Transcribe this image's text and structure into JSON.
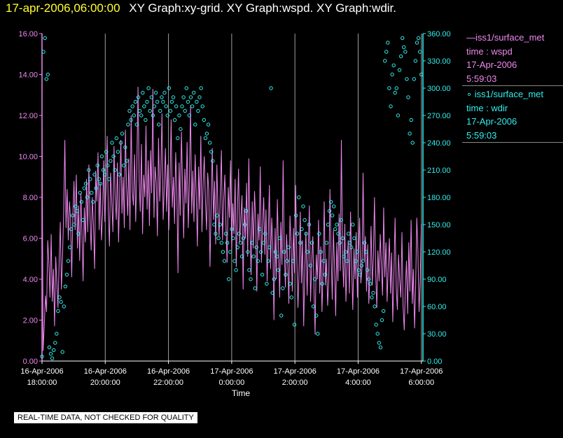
{
  "title": {
    "date": "17-apr-2006,06:00:00",
    "graphs": "XY Graph:xy-grid.  XY Graph:wspd.  XY Graph:wdir."
  },
  "legend": {
    "wspd": {
      "line1": "—iss1/surface_met",
      "line2": "time : wspd",
      "line3": "17-Apr-2006",
      "line4": "5:59:03"
    },
    "wdir": {
      "line1": "∘ iss1/surface_met",
      "line2": "time : wdir",
      "line3": "17-Apr-2006",
      "line4": "5:59:03"
    }
  },
  "disclaimer": "REAL-TIME DATA, NOT CHECKED FOR QUALITY",
  "colors": {
    "wspd": "#ee88ee",
    "wdir": "#33eeee",
    "grid": "#a0a0a0",
    "axis_left": "#ee88ee",
    "axis_right": "#33eeee",
    "ticklabel": "#ffffff",
    "background": "#000000"
  },
  "chart_data": {
    "type": "line",
    "title": "XY Graph:xy-grid.  XY Graph:wspd.  XY Graph:wdir.",
    "xlabel": "Time",
    "ylabel": "",
    "grid": "vertical",
    "legend_position": "right",
    "x_range_hours": [
      18.0,
      30.05
    ],
    "x_ticks": [
      {
        "hour": 18,
        "date": "16-Apr-2006",
        "time": "18:00:00"
      },
      {
        "hour": 20,
        "date": "16-Apr-2006",
        "time": "20:00:00"
      },
      {
        "hour": 22,
        "date": "16-Apr-2006",
        "time": "22:00:00"
      },
      {
        "hour": 24,
        "date": "17-Apr-2006",
        "time": "0:00:00"
      },
      {
        "hour": 26,
        "date": "17-Apr-2006",
        "time": "2:00:00"
      },
      {
        "hour": 28,
        "date": "17-Apr-2006",
        "time": "4:00:00"
      },
      {
        "hour": 30,
        "date": "17-Apr-2006",
        "time": "6:00:00"
      }
    ],
    "y_left": {
      "name": "wspd",
      "range": [
        0,
        16
      ],
      "ticks": [
        "0.00",
        "2.00",
        "4.00",
        "6.00",
        "8.00",
        "10.00",
        "12.00",
        "14.00",
        "16.00"
      ]
    },
    "y_right": {
      "name": "wdir",
      "range": [
        0,
        360
      ],
      "ticks": [
        "0.00",
        "30.00",
        "60.00",
        "90.00",
        "120.00",
        "150.00",
        "180.00",
        "210.00",
        "240.00",
        "270.00",
        "300.00",
        "330.00",
        "360.00"
      ]
    },
    "series": [
      {
        "name": "wspd",
        "style": "line",
        "x_start_hour": 18.0,
        "x_end_hour": 30.0,
        "values": [
          12.0,
          0.5,
          1.8,
          3.2,
          2.4,
          5.9,
          4.8,
          3.1,
          6.2,
          2.9,
          4.5,
          1.7,
          5.1,
          3.8,
          2.6,
          4.9,
          6.8,
          3.5,
          5.2,
          7.4,
          10.8,
          6.5,
          8.4,
          5.9,
          7.8,
          6.9,
          4.1,
          7.2,
          8.8,
          6.4,
          9.1,
          5.5,
          7.6,
          4.9,
          8.2,
          6.1,
          3.9,
          7.5,
          5.8,
          8.9,
          6.3,
          9.6,
          7.1,
          5.4,
          8.0,
          6.7,
          4.5,
          9.3,
          7.8,
          10.2,
          6.4,
          8.7,
          5.9,
          7.2,
          9.8,
          6.8,
          8.5,
          11.0,
          7.4,
          5.6,
          9.2,
          7.9,
          6.3,
          10.5,
          8.1,
          6.9,
          9.7,
          5.8,
          8.4,
          10.8,
          7.2,
          9.0,
          6.5,
          11.3,
          8.6,
          7.1,
          9.9,
          6.4,
          12.0,
          8.3,
          7.6,
          10.1,
          6.8,
          9.4,
          13.4,
          8.9,
          7.3,
          10.6,
          6.2,
          9.1,
          8.0,
          11.5,
          7.4,
          9.8,
          6.6,
          10.3,
          8.2,
          13.3,
          7.0,
          9.5,
          8.7,
          6.1,
          10.9,
          7.8,
          9.2,
          12.1,
          6.9,
          8.5,
          10.4,
          7.3,
          9.6,
          6.4,
          8.8,
          11.8,
          7.5,
          9.0,
          6.7,
          10.2,
          8.4,
          4.3,
          9.7,
          7.1,
          11.2,
          8.6,
          6.0,
          9.4,
          7.7,
          10.7,
          6.5,
          8.9,
          12.5,
          7.2,
          9.3,
          6.8,
          10.1,
          8.0,
          5.6,
          9.5,
          7.4,
          11.0,
          6.3,
          8.7,
          10.0,
          7.9,
          6.4,
          9.2,
          8.3,
          4.6,
          7.6,
          10.4,
          6.9,
          8.8,
          5.7,
          9.6,
          7.3,
          6.1,
          8.2,
          10.3,
          5.9,
          7.8,
          9.1,
          6.6,
          4.8,
          8.5,
          7.0,
          9.8,
          5.4,
          7.7,
          6.2,
          8.9,
          4.6,
          7.3,
          9.4,
          5.8,
          6.9,
          8.1,
          3.5,
          7.5,
          6.0,
          8.7,
          5.1,
          9.9,
          6.4,
          4.2,
          7.8,
          5.5,
          8.3,
          6.8,
          3.4,
          7.2,
          5.9,
          9.5,
          4.8,
          6.6,
          8.0,
          5.2,
          7.4,
          3.9,
          6.1,
          8.6,
          4.5,
          7.0,
          5.7,
          2.0,
          6.5,
          4.0,
          7.9,
          5.3,
          3.1,
          6.8,
          4.7,
          9.8,
          5.5,
          3.6,
          6.2,
          4.9,
          2.8,
          7.1,
          5.8,
          3.4,
          6.5,
          4.3,
          8.6,
          5.0,
          2.6,
          4.4,
          7.3,
          3.8,
          5.9,
          1.7,
          4.6,
          6.3,
          3.2,
          5.4,
          7.6,
          2.9,
          4.8,
          6.1,
          3.5,
          1.3,
          5.2,
          4.0,
          6.9,
          3.3,
          5.6,
          2.4,
          4.5,
          7.8,
          3.7,
          5.0,
          2.7,
          4.1,
          8.4,
          5.3,
          3.0,
          6.4,
          4.7,
          2.2,
          5.8,
          3.9,
          7.2,
          4.4,
          10.8,
          5.1,
          3.6,
          6.7,
          2.9,
          4.8,
          5.9,
          3.3,
          7.3,
          4.6,
          2.5,
          5.5,
          4.0,
          6.3,
          3.1,
          5.2,
          7.0,
          3.8,
          4.5,
          9.2,
          4.9,
          6.1,
          3.4,
          5.7,
          2.8,
          4.2,
          6.6,
          3.7,
          5.1,
          8.0,
          4.3,
          2.6,
          5.4,
          3.9,
          6.2,
          4.7,
          3.2,
          7.5,
          4.1,
          5.8,
          2.9,
          4.6,
          6.0,
          3.3,
          5.3,
          1.9,
          4.4,
          7.0,
          3.6,
          2.5,
          5.2,
          4.0,
          3.1,
          6.3,
          2.7,
          1.5,
          3.6,
          4.9,
          2.3,
          5.8,
          3.4,
          6.9,
          2.8,
          4.5,
          1.6,
          3.7,
          7.0,
          5.4,
          2.4,
          3.9,
          6.7
        ],
        "color": "#ee88ee",
        "axis": "left"
      },
      {
        "name": "wdir",
        "style": "markers",
        "x_start_hour": 18.0,
        "x_end_hour": 30.0,
        "values": [
          5,
          340,
          355,
          310,
          315,
          15,
          8,
          3,
          12,
          20,
          30,
          55,
          70,
          65,
          10,
          60,
          82,
          95,
          110,
          125,
          145,
          160,
          150,
          170,
          165,
          140,
          185,
          175,
          155,
          190,
          195,
          180,
          210,
          200,
          185,
          175,
          205,
          190,
          215,
          200,
          195,
          225,
          210,
          205,
          230,
          215,
          200,
          220,
          240,
          225,
          210,
          245,
          230,
          205,
          240,
          250,
          215,
          235,
          220,
          260,
          275,
          265,
          280,
          270,
          285,
          260,
          290,
          275,
          270,
          295,
          280,
          265,
          285,
          300,
          275,
          290,
          270,
          280,
          295,
          285,
          260,
          275,
          290,
          285,
          295,
          280,
          270,
          300,
          275,
          285,
          290,
          265,
          280,
          245,
          270,
          255,
          280,
          290,
          275,
          300,
          285,
          270,
          290,
          280,
          295,
          260,
          285,
          275,
          290,
          300,
          280,
          265,
          245,
          250,
          260,
          240,
          230,
          220,
          150,
          140,
          160,
          135,
          150,
          130,
          120,
          110,
          140,
          130,
          90,
          120,
          145,
          135,
          110,
          100,
          125,
          140,
          130,
          115,
          135,
          150,
          165,
          120,
          100,
          90,
          130,
          115,
          80,
          125,
          110,
          145,
          120,
          95,
          130,
          140,
          85,
          110,
          125,
          300,
          75,
          90,
          120,
          115,
          100,
          135,
          50,
          80,
          120,
          95,
          110,
          125,
          85,
          70,
          110,
          40,
          160,
          140,
          180,
          130,
          145,
          170,
          155,
          140,
          120,
          150,
          105,
          130,
          60,
          90,
          50,
          30,
          140,
          120,
          85,
          110,
          95,
          130,
          150,
          165,
          175,
          160,
          170,
          145,
          150,
          140,
          130,
          155,
          135,
          115,
          120,
          110,
          140,
          130,
          125,
          150,
          135,
          110,
          120,
          100,
          95,
          105,
          110,
          130,
          120,
          100,
          90,
          85,
          70,
          75,
          60,
          40,
          30,
          20,
          15,
          45,
          55,
          330,
          340,
          350,
          300,
          280,
          315,
          325,
          295,
          300,
          270,
          320,
          335,
          355,
          345,
          340,
          310,
          290,
          250,
          265,
          240,
          310,
          330,
          350,
          355,
          340,
          315
        ],
        "color": "#33eeee",
        "axis": "right"
      }
    ]
  }
}
